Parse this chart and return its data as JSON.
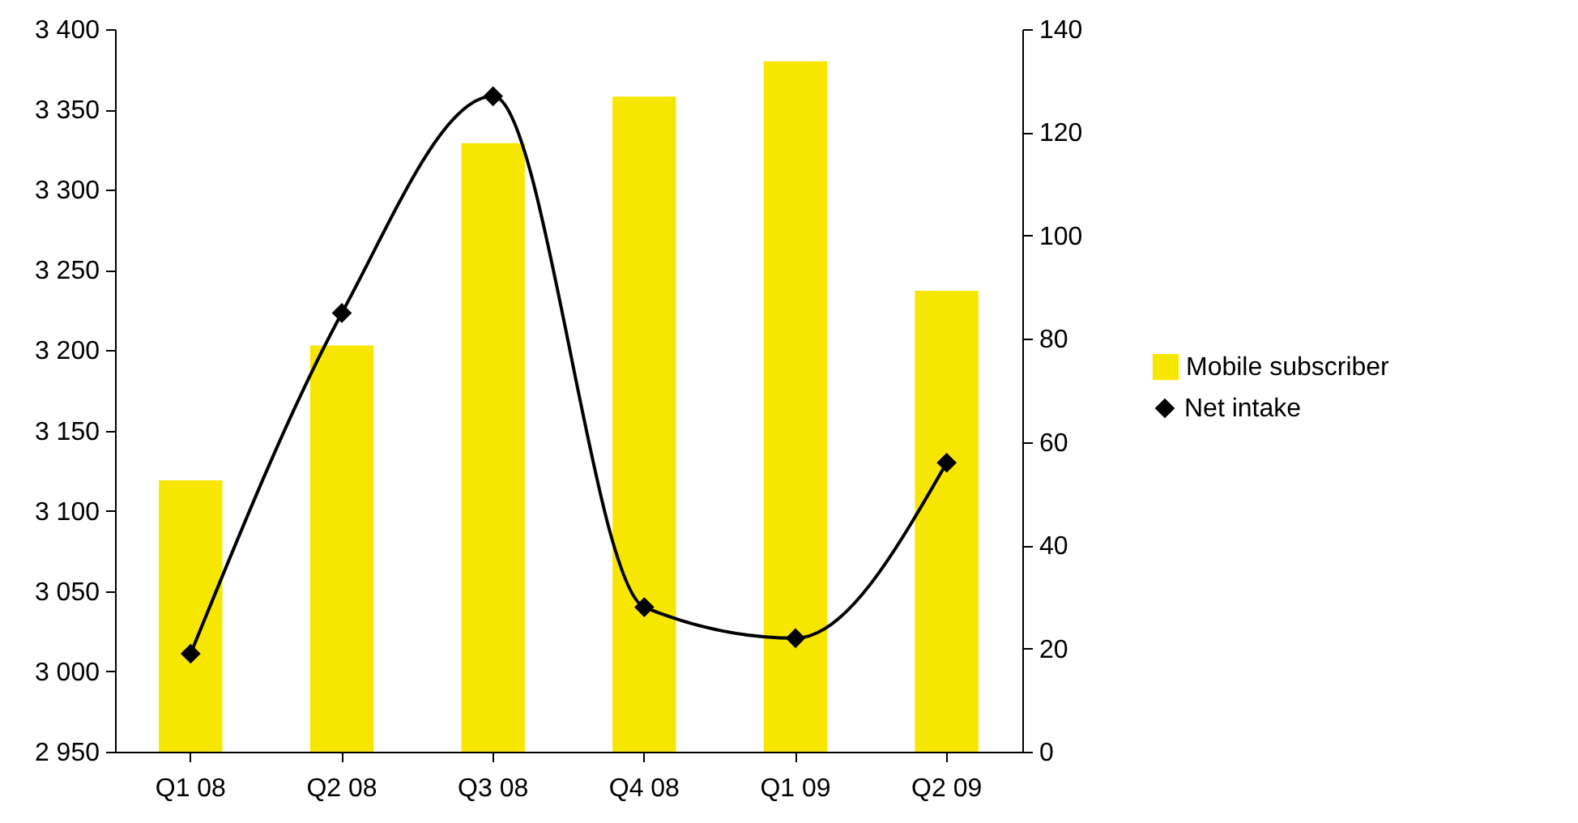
{
  "chart_data": {
    "type": "bar",
    "categories": [
      "Q1 08",
      "Q2 08",
      "Q3 08",
      "Q4 08",
      "Q1 09",
      "Q2 09"
    ],
    "series": [
      {
        "name": "Mobile subscriber",
        "color": "#f7e600",
        "values": [
          3119,
          3203,
          3329,
          3358,
          3380,
          3237
        ]
      },
      {
        "name": "Net intake",
        "type": "line",
        "axis": "y2",
        "color": "#000000",
        "marker": "diamond",
        "values": [
          19,
          85,
          127,
          28,
          22,
          56
        ]
      }
    ],
    "ylim": [
      2950,
      3400
    ],
    "yticks": [
      {
        "value": 2950,
        "label": "2 950"
      },
      {
        "value": 3000,
        "label": "3 000"
      },
      {
        "value": 3050,
        "label": "3 050"
      },
      {
        "value": 3100,
        "label": "3 100"
      },
      {
        "value": 3150,
        "label": "3 150"
      },
      {
        "value": 3200,
        "label": "3 200"
      },
      {
        "value": 3250,
        "label": "3 250"
      },
      {
        "value": 3300,
        "label": "3 300"
      },
      {
        "value": 3350,
        "label": "3 350"
      },
      {
        "value": 3400,
        "label": "3 400"
      }
    ],
    "y2lim": [
      0,
      140
    ],
    "y2ticks": [
      0,
      20,
      40,
      60,
      80,
      100,
      120,
      140
    ],
    "legend": "right",
    "grid": false
  }
}
